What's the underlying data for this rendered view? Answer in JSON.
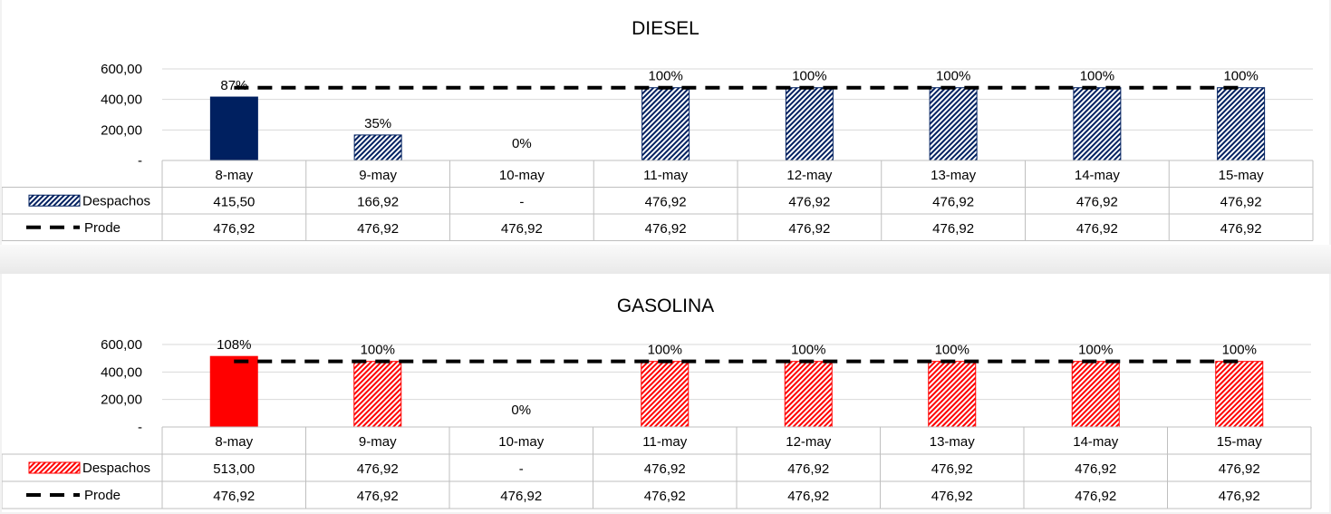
{
  "chart_data": [
    {
      "type": "bar",
      "title": "DIESEL",
      "categories": [
        "8-may",
        "9-may",
        "10-may",
        "11-may",
        "12-may",
        "13-may",
        "14-may",
        "15-may"
      ],
      "series": [
        {
          "name": "Despachos",
          "kind": "bar",
          "values": [
            415.5,
            166.92,
            0,
            476.92,
            476.92,
            476.92,
            476.92,
            476.92
          ],
          "table_values": [
            "415,50",
            "166,92",
            "-",
            "476,92",
            "476,92",
            "476,92",
            "476,92",
            "476,92"
          ],
          "color": "#002060",
          "pattern": "hatched-after-first"
        },
        {
          "name": "Prode",
          "kind": "dashed-line",
          "values": [
            476.92,
            476.92,
            476.92,
            476.92,
            476.92,
            476.92,
            476.92,
            476.92
          ],
          "table_values": [
            "476,92",
            "476,92",
            "476,92",
            "476,92",
            "476,92",
            "476,92",
            "476,92",
            "476,92"
          ],
          "color": "#000000"
        }
      ],
      "data_labels": [
        "87%",
        "35%",
        "0%",
        "100%",
        "100%",
        "100%",
        "100%",
        "100%"
      ],
      "ylim": [
        0,
        600
      ],
      "y_ticks": [
        0,
        200,
        400,
        600
      ],
      "y_tick_labels": [
        "-",
        "200,00",
        "400,00",
        "600,00"
      ],
      "gridlines": true,
      "legend": "data-table"
    },
    {
      "type": "bar",
      "title": "GASOLINA",
      "categories": [
        "8-may",
        "9-may",
        "10-may",
        "11-may",
        "12-may",
        "13-may",
        "14-may",
        "15-may"
      ],
      "series": [
        {
          "name": "Despachos",
          "kind": "bar",
          "values": [
            513.0,
            476.92,
            0,
            476.92,
            476.92,
            476.92,
            476.92,
            476.92
          ],
          "table_values": [
            "513,00",
            "476,92",
            "-",
            "476,92",
            "476,92",
            "476,92",
            "476,92",
            "476,92"
          ],
          "color": "#ff0000",
          "pattern": "hatched-after-first"
        },
        {
          "name": "Prode",
          "kind": "dashed-line",
          "values": [
            476.92,
            476.92,
            476.92,
            476.92,
            476.92,
            476.92,
            476.92,
            476.92
          ],
          "table_values": [
            "476,92",
            "476,92",
            "476,92",
            "476,92",
            "476,92",
            "476,92",
            "476,92",
            "476,92"
          ],
          "color": "#000000"
        }
      ],
      "data_labels": [
        "108%",
        "100%",
        "0%",
        "100%",
        "100%",
        "100%",
        "100%",
        "100%"
      ],
      "ylim": [
        0,
        600
      ],
      "y_ticks": [
        0,
        200,
        400,
        600
      ],
      "y_tick_labels": [
        "-",
        "200,00",
        "400,00",
        "600,00"
      ],
      "gridlines": true,
      "legend": "data-table"
    }
  ]
}
